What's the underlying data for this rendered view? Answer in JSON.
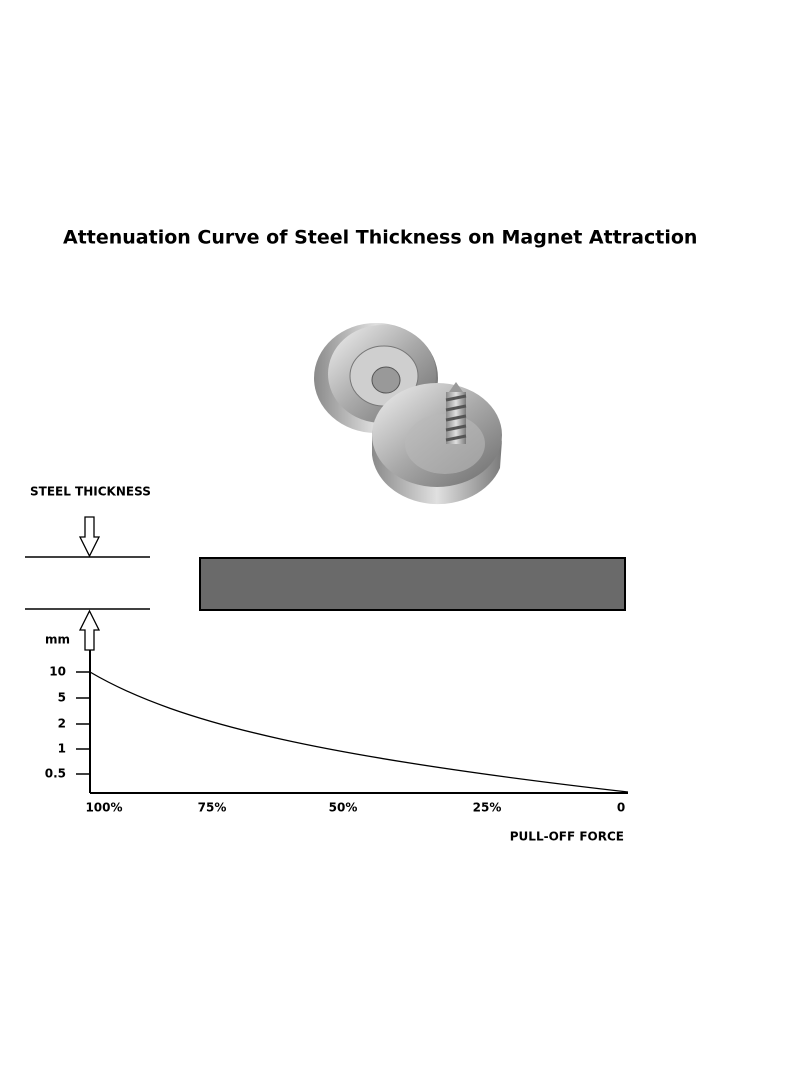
{
  "header": {
    "title": "Attenuation Curve of Steel Thickness on Magnet Attraction"
  },
  "diagram": {
    "thickness_label": "STEEL THICKNESS",
    "unit_label": "mm",
    "y_labels": [
      "10",
      "5",
      "2",
      "1",
      "0.5"
    ],
    "x_labels": [
      "100%",
      "75%",
      "50%",
      "25%",
      "0"
    ],
    "x_axis_title": "PULL-OFF FORCE"
  }
}
